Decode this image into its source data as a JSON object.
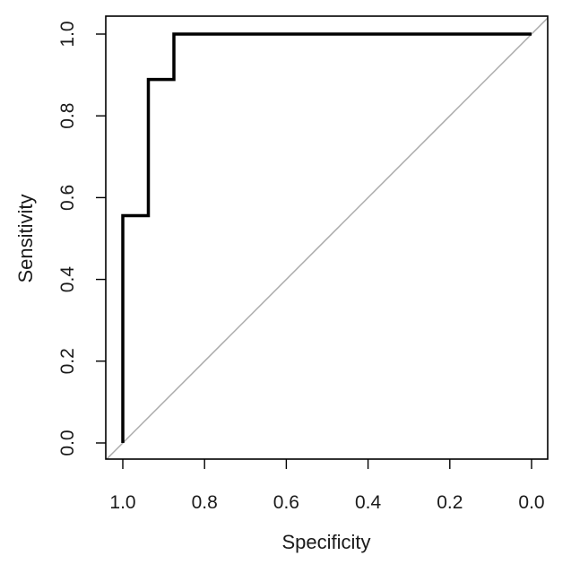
{
  "chart_data": {
    "type": "line",
    "title": "",
    "xlabel": "Specificity",
    "ylabel": "Sensitivity",
    "xlim": [
      1.0,
      0.0
    ],
    "ylim": [
      0.0,
      1.0
    ],
    "x_reversed": true,
    "grid": false,
    "x_ticks": [
      1.0,
      0.8,
      0.6,
      0.4,
      0.2,
      0.0
    ],
    "x_tick_labels": [
      "1.0",
      "0.8",
      "0.6",
      "0.4",
      "0.2",
      "0.0"
    ],
    "y_ticks": [
      0.0,
      0.2,
      0.4,
      0.6,
      0.8,
      1.0
    ],
    "y_tick_labels": [
      "0.0",
      "0.2",
      "0.4",
      "0.6",
      "0.8",
      "1.0"
    ],
    "series": [
      {
        "role": "roc-curve",
        "color": "#000000",
        "points": [
          {
            "specificity": 1.0,
            "sensitivity": 0.0
          },
          {
            "specificity": 1.0,
            "sensitivity": 0.556
          },
          {
            "specificity": 0.9375,
            "sensitivity": 0.556
          },
          {
            "specificity": 0.9375,
            "sensitivity": 0.889
          },
          {
            "specificity": 0.875,
            "sensitivity": 0.889
          },
          {
            "specificity": 0.875,
            "sensitivity": 1.0
          },
          {
            "specificity": 0.0,
            "sensitivity": 1.0
          }
        ]
      },
      {
        "role": "reference-diagonal",
        "color": "#aaaaaa",
        "points": [
          {
            "specificity": 1.04,
            "sensitivity": -0.04
          },
          {
            "specificity": -0.04,
            "sensitivity": 1.04
          }
        ]
      }
    ]
  }
}
